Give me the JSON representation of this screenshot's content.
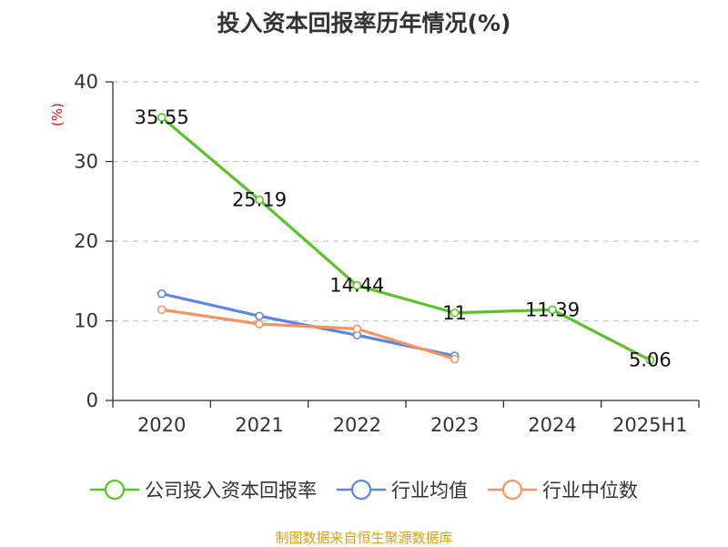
{
  "title": "投入资本回报率历年情况(%)",
  "source_note": "制图数据来自恒生聚源数据库",
  "colors": {
    "company": "#5cc22a",
    "industry_avg": "#5b86e5",
    "industry_median": "#f59363",
    "source_note": "#d4a017",
    "ylabel": "#d81e06"
  },
  "chart_data": {
    "type": "line",
    "title": "投入资本回报率历年情况(%)",
    "ylabel": "(%)",
    "xlabel": "",
    "categories": [
      "2020",
      "2021",
      "2022",
      "2023",
      "2024",
      "2025H1"
    ],
    "ylim": [
      0,
      40
    ],
    "yticks": [
      0,
      10,
      20,
      30,
      40
    ],
    "grid": "horizontal-dashed",
    "legend_position": "bottom",
    "series": [
      {
        "name": "公司投入资本回报率",
        "color_key": "company",
        "values": [
          35.55,
          25.19,
          14.44,
          11,
          11.39,
          5.06
        ],
        "data_labels": [
          "35.55",
          "25.19",
          "14.44",
          "11",
          "11.39",
          "5.06"
        ]
      },
      {
        "name": "行业均值",
        "color_key": "industry_avg",
        "values": [
          13.4,
          10.6,
          8.2,
          5.6,
          null,
          null
        ]
      },
      {
        "name": "行业中位数",
        "color_key": "industry_median",
        "values": [
          11.4,
          9.6,
          9.0,
          5.2,
          null,
          null
        ]
      }
    ]
  }
}
